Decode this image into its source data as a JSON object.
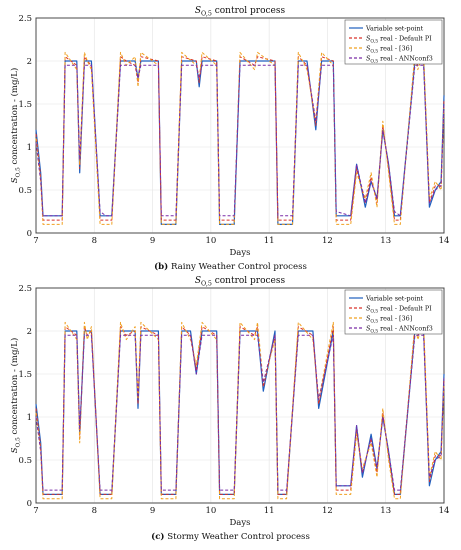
{
  "figure": {
    "captions": [
      {
        "tag": "(b)",
        "text": "Rainy Weather Control process"
      },
      {
        "tag": "(c)",
        "text": "Stormy Weather Control process"
      }
    ]
  },
  "chart_data": [
    {
      "type": "line",
      "title": "S_O,5 control process",
      "xlabel": "Days",
      "ylabel": "S_O,5 concentration - (mg/L)",
      "xlim": [
        7,
        14
      ],
      "ylim": [
        0,
        2.5
      ],
      "xticks": [
        "7",
        "8",
        "9",
        "10",
        "11",
        "12",
        "13",
        "14"
      ],
      "yticks": [
        "0",
        "0.5",
        "1",
        "1.5",
        "2",
        "2.5"
      ],
      "grid": true,
      "legend_position": "top-right",
      "legend": [
        "Variable set-point",
        "S_O,5 real - Default PI",
        "S_O,5 real - [36]",
        "S_O,5 real - ANNconf3"
      ],
      "series": [
        {
          "name": "Variable set-point",
          "color": "#1f5fbf",
          "style": "solid",
          "x": [
            7.0,
            7.08,
            7.12,
            7.3,
            7.45,
            7.5,
            7.7,
            7.75,
            7.83,
            7.88,
            7.95,
            8.1,
            8.2,
            8.3,
            8.45,
            8.55,
            8.7,
            8.75,
            8.8,
            9.1,
            9.15,
            9.4,
            9.5,
            9.75,
            9.8,
            9.85,
            10.1,
            10.15,
            10.4,
            10.5,
            10.75,
            10.8,
            11.1,
            11.15,
            11.4,
            11.5,
            11.65,
            11.8,
            11.9,
            12.1,
            12.15,
            12.4,
            12.5,
            12.65,
            12.75,
            12.85,
            12.95,
            13.05,
            13.15,
            13.25,
            13.5,
            13.55,
            13.65,
            13.75,
            13.85,
            13.95,
            14.0
          ],
          "y": [
            1.2,
            0.7,
            0.2,
            0.2,
            0.2,
            2.0,
            2.0,
            0.7,
            2.0,
            2.0,
            2.0,
            0.2,
            0.2,
            0.2,
            2.0,
            2.0,
            2.0,
            1.8,
            2.0,
            2.0,
            0.1,
            0.1,
            2.0,
            2.0,
            1.7,
            2.0,
            2.0,
            0.1,
            0.1,
            2.0,
            2.0,
            2.0,
            2.0,
            0.1,
            0.1,
            2.0,
            2.0,
            1.2,
            2.0,
            2.0,
            0.2,
            0.2,
            0.8,
            0.3,
            0.6,
            0.4,
            1.2,
            0.8,
            0.2,
            0.2,
            2.0,
            2.0,
            2.0,
            0.3,
            0.5,
            0.6,
            1.6
          ]
        },
        {
          "name": "S_O,5 real - Default PI",
          "color": "#d9332b",
          "style": "dashed",
          "x": [
            7.0,
            7.08,
            7.12,
            7.3,
            7.45,
            7.5,
            7.7,
            7.75,
            7.83,
            7.88,
            7.95,
            8.1,
            8.2,
            8.3,
            8.45,
            8.55,
            8.7,
            8.75,
            8.8,
            9.1,
            9.15,
            9.4,
            9.5,
            9.75,
            9.8,
            9.85,
            10.1,
            10.15,
            10.4,
            10.5,
            10.75,
            10.8,
            11.1,
            11.15,
            11.4,
            11.5,
            11.65,
            11.8,
            11.9,
            12.1,
            12.15,
            12.4,
            12.5,
            12.65,
            12.75,
            12.85,
            12.95,
            13.05,
            13.15,
            13.25,
            13.5,
            13.55,
            13.65,
            13.75,
            13.85,
            13.95,
            14.0
          ],
          "y": [
            1.15,
            0.65,
            0.15,
            0.15,
            0.15,
            2.05,
            1.95,
            0.75,
            2.05,
            2.0,
            1.95,
            0.15,
            0.15,
            0.15,
            2.05,
            2.0,
            1.95,
            1.75,
            2.05,
            2.0,
            0.15,
            0.15,
            2.05,
            2.0,
            1.75,
            2.05,
            2.0,
            0.15,
            0.15,
            2.05,
            1.95,
            2.05,
            2.0,
            0.15,
            0.15,
            2.05,
            1.95,
            1.25,
            2.05,
            2.0,
            0.15,
            0.15,
            0.75,
            0.35,
            0.65,
            0.35,
            1.25,
            0.75,
            0.15,
            0.15,
            2.05,
            1.95,
            2.05,
            0.35,
            0.55,
            0.55,
            1.55
          ]
        },
        {
          "name": "S_O,5 real - [36]",
          "color": "#f0a020",
          "style": "dashed",
          "x": [
            7.0,
            7.08,
            7.12,
            7.3,
            7.45,
            7.5,
            7.7,
            7.75,
            7.83,
            7.88,
            7.95,
            8.1,
            8.2,
            8.3,
            8.45,
            8.55,
            8.7,
            8.75,
            8.8,
            9.1,
            9.15,
            9.4,
            9.5,
            9.75,
            9.8,
            9.85,
            10.1,
            10.15,
            10.4,
            10.5,
            10.75,
            10.8,
            11.1,
            11.15,
            11.4,
            11.5,
            11.65,
            11.8,
            11.9,
            12.1,
            12.15,
            12.4,
            12.5,
            12.65,
            12.75,
            12.85,
            12.95,
            13.05,
            13.15,
            13.25,
            13.5,
            13.55,
            13.65,
            13.75,
            13.85,
            13.95,
            14.0
          ],
          "y": [
            1.1,
            0.6,
            0.1,
            0.1,
            0.1,
            2.1,
            1.9,
            0.8,
            2.1,
            2.0,
            1.9,
            0.1,
            0.1,
            0.1,
            2.1,
            1.95,
            2.05,
            1.7,
            2.1,
            1.95,
            0.1,
            0.1,
            2.1,
            1.95,
            1.8,
            2.1,
            1.95,
            0.1,
            0.1,
            2.1,
            1.9,
            2.1,
            1.95,
            0.1,
            0.1,
            2.1,
            1.9,
            1.3,
            2.1,
            1.95,
            0.1,
            0.1,
            0.7,
            0.4,
            0.7,
            0.3,
            1.3,
            0.7,
            0.1,
            0.1,
            2.1,
            1.9,
            2.1,
            0.4,
            0.6,
            0.5,
            1.5
          ]
        },
        {
          "name": "S_O,5 real - ANNconf3",
          "color": "#7a2ca8",
          "style": "dashed",
          "x": [
            7.0,
            7.08,
            7.12,
            7.3,
            7.45,
            7.5,
            7.7,
            7.75,
            7.83,
            7.88,
            7.95,
            8.1,
            8.2,
            8.3,
            8.45,
            8.55,
            8.7,
            8.75,
            8.8,
            9.1,
            9.15,
            9.4,
            9.5,
            9.75,
            9.8,
            9.85,
            10.1,
            10.15,
            10.4,
            10.5,
            10.75,
            10.8,
            11.1,
            11.15,
            11.4,
            11.5,
            11.65,
            11.8,
            11.9,
            12.1,
            12.15,
            12.4,
            12.5,
            12.65,
            12.75,
            12.85,
            12.95,
            13.05,
            13.15,
            13.25,
            13.5,
            13.55,
            13.65,
            13.75,
            13.85,
            13.95,
            14.0
          ],
          "y": [
            1.05,
            0.6,
            0.2,
            0.2,
            0.2,
            1.95,
            1.95,
            0.85,
            1.95,
            1.95,
            1.95,
            0.25,
            0.2,
            0.2,
            1.95,
            1.95,
            1.95,
            1.8,
            1.95,
            1.95,
            0.2,
            0.2,
            1.95,
            1.95,
            1.8,
            1.95,
            1.95,
            0.2,
            0.2,
            1.95,
            1.95,
            1.95,
            1.95,
            0.2,
            0.2,
            1.95,
            1.95,
            1.3,
            1.95,
            1.95,
            0.25,
            0.2,
            0.8,
            0.35,
            0.6,
            0.4,
            1.2,
            0.8,
            0.25,
            0.2,
            1.95,
            1.95,
            1.95,
            0.35,
            0.5,
            0.55,
            1.5
          ]
        }
      ]
    },
    {
      "type": "line",
      "title": "S_O,5 control process",
      "xlabel": "Days",
      "ylabel": "S_O,5 concentration - (mg/L)",
      "xlim": [
        7,
        14
      ],
      "ylim": [
        0,
        2.5
      ],
      "xticks": [
        "7",
        "8",
        "9",
        "10",
        "11",
        "12",
        "13",
        "14"
      ],
      "yticks": [
        "0",
        "0.5",
        "1",
        "1.5",
        "2",
        "2.5"
      ],
      "grid": true,
      "legend_position": "top-right",
      "legend": [
        "Variable set-point",
        "S_O,5 real - Default PI",
        "S_O,5 real - [36]",
        "S_O,5 real - ANNconf3"
      ],
      "series": [
        {
          "name": "Variable set-point",
          "color": "#1f5fbf",
          "style": "solid",
          "x": [
            7.0,
            7.08,
            7.12,
            7.3,
            7.45,
            7.5,
            7.7,
            7.75,
            7.83,
            7.88,
            7.95,
            8.1,
            8.2,
            8.3,
            8.45,
            8.55,
            8.7,
            8.75,
            8.8,
            9.1,
            9.15,
            9.4,
            9.5,
            9.65,
            9.75,
            9.85,
            10.1,
            10.15,
            10.4,
            10.5,
            10.75,
            10.8,
            10.9,
            11.1,
            11.15,
            11.3,
            11.5,
            11.75,
            11.85,
            12.1,
            12.15,
            12.4,
            12.5,
            12.6,
            12.75,
            12.85,
            12.95,
            13.05,
            13.15,
            13.25,
            13.5,
            13.55,
            13.65,
            13.75,
            13.85,
            13.95,
            14.0
          ],
          "y": [
            1.15,
            0.7,
            0.1,
            0.1,
            0.1,
            2.0,
            2.0,
            0.8,
            2.0,
            2.0,
            2.0,
            0.1,
            0.1,
            0.1,
            2.0,
            2.0,
            2.0,
            1.1,
            2.0,
            2.0,
            0.1,
            0.1,
            2.0,
            2.0,
            1.5,
            2.0,
            2.0,
            0.1,
            0.1,
            2.0,
            2.0,
            2.0,
            1.3,
            2.0,
            0.1,
            0.1,
            2.0,
            2.0,
            1.1,
            2.0,
            0.2,
            0.2,
            0.9,
            0.3,
            0.8,
            0.4,
            1.0,
            0.6,
            0.1,
            0.1,
            2.0,
            2.0,
            2.0,
            0.2,
            0.5,
            0.6,
            1.5
          ]
        },
        {
          "name": "S_O,5 real - Default PI",
          "color": "#d9332b",
          "style": "dashed",
          "x": [
            7.0,
            7.08,
            7.12,
            7.3,
            7.45,
            7.5,
            7.7,
            7.75,
            7.83,
            7.88,
            7.95,
            8.1,
            8.2,
            8.3,
            8.45,
            8.55,
            8.7,
            8.75,
            8.8,
            9.1,
            9.15,
            9.4,
            9.5,
            9.65,
            9.75,
            9.85,
            10.1,
            10.15,
            10.4,
            10.5,
            10.75,
            10.8,
            10.9,
            11.1,
            11.15,
            11.3,
            11.5,
            11.75,
            11.85,
            12.1,
            12.15,
            12.4,
            12.5,
            12.6,
            12.75,
            12.85,
            12.95,
            13.05,
            13.15,
            13.25,
            13.5,
            13.55,
            13.65,
            13.75,
            13.85,
            13.95,
            14.0
          ],
          "y": [
            1.1,
            0.65,
            0.1,
            0.1,
            0.1,
            2.05,
            1.95,
            0.75,
            2.05,
            1.95,
            2.0,
            0.1,
            0.1,
            0.1,
            2.05,
            1.95,
            2.0,
            1.15,
            2.05,
            1.95,
            0.1,
            0.1,
            2.05,
            1.95,
            1.55,
            2.05,
            1.95,
            0.1,
            0.1,
            2.05,
            1.95,
            2.05,
            1.35,
            1.95,
            0.1,
            0.1,
            2.05,
            1.95,
            1.15,
            2.05,
            0.15,
            0.15,
            0.85,
            0.35,
            0.75,
            0.35,
            1.05,
            0.55,
            0.1,
            0.1,
            2.05,
            1.95,
            2.05,
            0.25,
            0.55,
            0.55,
            1.45
          ]
        },
        {
          "name": "S_O,5 real - [36]",
          "color": "#f0a020",
          "style": "dashed",
          "x": [
            7.0,
            7.08,
            7.12,
            7.3,
            7.45,
            7.5,
            7.7,
            7.75,
            7.83,
            7.88,
            7.95,
            8.1,
            8.2,
            8.3,
            8.45,
            8.55,
            8.7,
            8.75,
            8.8,
            9.1,
            9.15,
            9.4,
            9.5,
            9.65,
            9.75,
            9.85,
            10.1,
            10.15,
            10.4,
            10.5,
            10.75,
            10.8,
            10.9,
            11.1,
            11.15,
            11.3,
            11.5,
            11.75,
            11.85,
            12.1,
            12.15,
            12.4,
            12.5,
            12.6,
            12.75,
            12.85,
            12.95,
            13.05,
            13.15,
            13.25,
            13.5,
            13.55,
            13.65,
            13.75,
            13.85,
            13.95,
            14.0
          ],
          "y": [
            1.05,
            0.6,
            0.05,
            0.05,
            0.05,
            2.1,
            1.9,
            0.7,
            2.1,
            1.9,
            2.05,
            0.05,
            0.05,
            0.05,
            2.1,
            1.9,
            2.05,
            1.2,
            2.1,
            1.9,
            0.05,
            0.05,
            2.1,
            1.9,
            1.6,
            2.1,
            1.9,
            0.05,
            0.05,
            2.1,
            1.9,
            2.1,
            1.4,
            1.9,
            0.05,
            0.05,
            2.1,
            1.9,
            1.2,
            2.1,
            0.1,
            0.1,
            0.8,
            0.4,
            0.7,
            0.3,
            1.1,
            0.5,
            0.05,
            0.05,
            2.1,
            1.9,
            2.1,
            0.3,
            0.6,
            0.5,
            1.4
          ]
        },
        {
          "name": "S_O,5 real - ANNconf3",
          "color": "#7a2ca8",
          "style": "dashed",
          "x": [
            7.0,
            7.08,
            7.12,
            7.3,
            7.45,
            7.5,
            7.7,
            7.75,
            7.83,
            7.88,
            7.95,
            8.1,
            8.2,
            8.3,
            8.45,
            8.55,
            8.7,
            8.75,
            8.8,
            9.1,
            9.15,
            9.4,
            9.5,
            9.65,
            9.75,
            9.85,
            10.1,
            10.15,
            10.4,
            10.5,
            10.75,
            10.8,
            10.9,
            11.1,
            11.15,
            11.3,
            11.5,
            11.75,
            11.85,
            12.1,
            12.15,
            12.4,
            12.5,
            12.6,
            12.75,
            12.85,
            12.95,
            13.05,
            13.15,
            13.25,
            13.5,
            13.55,
            13.65,
            13.75,
            13.85,
            13.95,
            14.0
          ],
          "y": [
            1.0,
            0.6,
            0.15,
            0.15,
            0.15,
            1.95,
            1.95,
            0.85,
            1.95,
            1.95,
            1.95,
            0.15,
            0.15,
            0.15,
            1.95,
            1.95,
            1.95,
            1.2,
            1.95,
            1.95,
            0.15,
            0.15,
            1.95,
            1.95,
            1.5,
            1.95,
            1.95,
            0.15,
            0.15,
            1.95,
            1.95,
            1.95,
            1.4,
            1.95,
            0.15,
            0.15,
            1.95,
            1.95,
            1.2,
            1.95,
            0.2,
            0.2,
            0.9,
            0.35,
            0.75,
            0.4,
            1.0,
            0.6,
            0.15,
            0.15,
            1.95,
            1.95,
            1.95,
            0.3,
            0.5,
            0.55,
            1.45
          ]
        }
      ]
    }
  ]
}
